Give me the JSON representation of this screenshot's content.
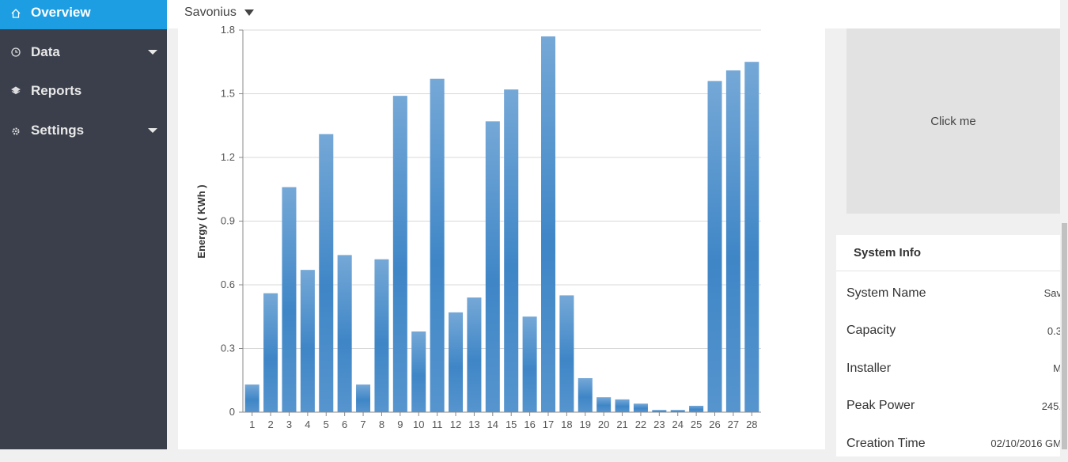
{
  "sidebar": {
    "items": [
      "Overview",
      "Data",
      "Reports",
      "Settings"
    ]
  },
  "header": {
    "system": "Savonius"
  },
  "chart_data": {
    "type": "bar",
    "y_label": "Energy ( KWh )",
    "categories": [
      "1",
      "2",
      "3",
      "4",
      "5",
      "6",
      "7",
      "8",
      "9",
      "10",
      "11",
      "12",
      "13",
      "14",
      "15",
      "16",
      "17",
      "18",
      "19",
      "20",
      "21",
      "22",
      "23",
      "24",
      "25",
      "26",
      "27",
      "28"
    ],
    "values": [
      0.13,
      0.56,
      1.06,
      0.67,
      1.31,
      0.74,
      0.13,
      0.72,
      1.49,
      0.38,
      1.57,
      0.47,
      0.54,
      1.37,
      1.52,
      0.45,
      1.77,
      0.55,
      0.16,
      0.07,
      0.06,
      0.04,
      0.01,
      0.01,
      0.03,
      1.56,
      1.61,
      1.65
    ],
    "color": "#3f86c7",
    "ylim": [
      0,
      1.8
    ],
    "yticks": [
      0,
      0.3,
      0.6,
      0.9,
      1.2,
      1.5,
      1.8
    ],
    "grid": true
  },
  "panel": {
    "button": "Click me",
    "info_title": "System Info",
    "rows": [
      [
        "System Name",
        "Sav"
      ],
      [
        "Capacity",
        "0.3"
      ],
      [
        "Installer",
        "M"
      ],
      [
        "Peak Power",
        "245."
      ],
      [
        "Creation Time",
        "02/10/2016 GM"
      ]
    ]
  }
}
